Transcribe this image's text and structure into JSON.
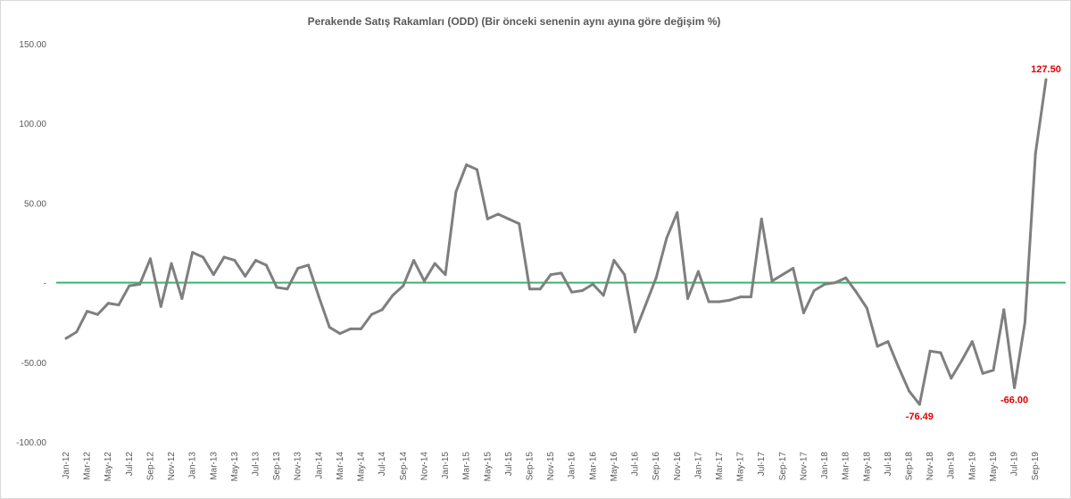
{
  "chart_data": {
    "type": "line",
    "title": "Perakende Satış Rakamları (ODD) (Bir önceki senenin aynı ayına göre değişim %)",
    "ylim": [
      -100,
      150
    ],
    "y_ticks": [
      "150.00",
      "100.00",
      "50.00",
      "-",
      "-50.00",
      "-100.00"
    ],
    "y_tick_values": [
      150,
      100,
      50,
      0,
      -50,
      -100
    ],
    "x_tick_labels": [
      "Jan-12",
      "Mar-12",
      "May-12",
      "Jul-12",
      "Sep-12",
      "Nov-12",
      "Jan-13",
      "Mar-13",
      "May-13",
      "Jul-13",
      "Sep-13",
      "Nov-13",
      "Jan-14",
      "Mar-14",
      "May-14",
      "Jul-14",
      "Sep-14",
      "Nov-14",
      "Jan-15",
      "Mar-15",
      "May-15",
      "Jul-15",
      "Sep-15",
      "Nov-15",
      "Jan-16",
      "Mar-16",
      "May-16",
      "Jul-16",
      "Sep-16",
      "Nov-16",
      "Jan-17",
      "Mar-17",
      "May-17",
      "Jul-17",
      "Sep-17",
      "Nov-17",
      "Jan-18",
      "Mar-18",
      "May-18",
      "Jul-18",
      "Sep-18",
      "Nov-18",
      "Jan-19",
      "Mar-19",
      "May-19",
      "Jul-19",
      "Sep-19"
    ],
    "series": [
      {
        "color": "#7f7f7f",
        "values": [
          -35,
          -31,
          -18,
          -20,
          -13,
          -14,
          -2,
          -1,
          15,
          -15,
          12,
          -10,
          19,
          16,
          5,
          16,
          14,
          4,
          14,
          11,
          -3,
          -4,
          9,
          11,
          -9,
          -28,
          -32,
          -29,
          -29,
          -20,
          -17,
          -8,
          -2,
          14,
          1,
          12,
          5,
          57,
          74,
          71,
          40,
          43,
          40,
          37,
          -4,
          -4,
          5,
          6,
          -6,
          -5,
          -1,
          -8,
          14,
          5,
          -31,
          -14,
          3,
          28,
          44,
          -10,
          7,
          -12,
          -12,
          -11,
          -9,
          -9,
          40,
          1,
          5,
          9,
          -19,
          -5,
          -1,
          0,
          3,
          -6,
          -16,
          -40,
          -37,
          -53,
          -68,
          -76.49,
          -43,
          -44,
          -60,
          -49,
          -37,
          -57,
          -55,
          -17,
          -66,
          -25,
          81,
          127.5
        ],
        "data_labels": [
          {
            "index": 81,
            "text": "-76.49"
          },
          {
            "index": 90,
            "text": "-66.00"
          },
          {
            "index": 93,
            "text": "127.50"
          }
        ]
      }
    ],
    "reference_line": {
      "y": 0,
      "color": "#3cb371"
    },
    "data_label_color": "#e00000",
    "grid": false,
    "legend": "none"
  }
}
